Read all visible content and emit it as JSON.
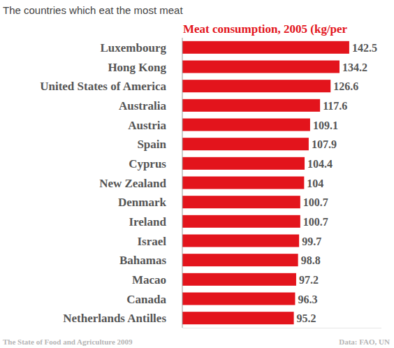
{
  "chart_data": {
    "type": "bar",
    "orientation": "horizontal",
    "title": "The countries which eat the most meat",
    "subtitle": "Meat consumption, 2005 (kg/per",
    "annotations": [
      "The State of Food and Agriculture 2009",
      "Data: FAO, UN"
    ],
    "categories": [
      "Luxembourg",
      "Hong Kong",
      "United States of America",
      "Australia",
      "Austria",
      "Spain",
      "Cyprus",
      "New Zealand",
      "Denmark",
      "Ireland",
      "Israel",
      "Bahamas",
      "Macao",
      "Canada",
      "Netherlands Antilles"
    ],
    "values": [
      142.5,
      134.2,
      126.6,
      117.6,
      109.1,
      107.9,
      104.4,
      104,
      100.7,
      100.7,
      99.7,
      98.8,
      97.2,
      96.3,
      95.2
    ],
    "color": "#e3141c",
    "xlim": [
      0,
      170
    ],
    "xticks": [],
    "grid": false,
    "data_labels": true,
    "tick_labels": "y"
  }
}
